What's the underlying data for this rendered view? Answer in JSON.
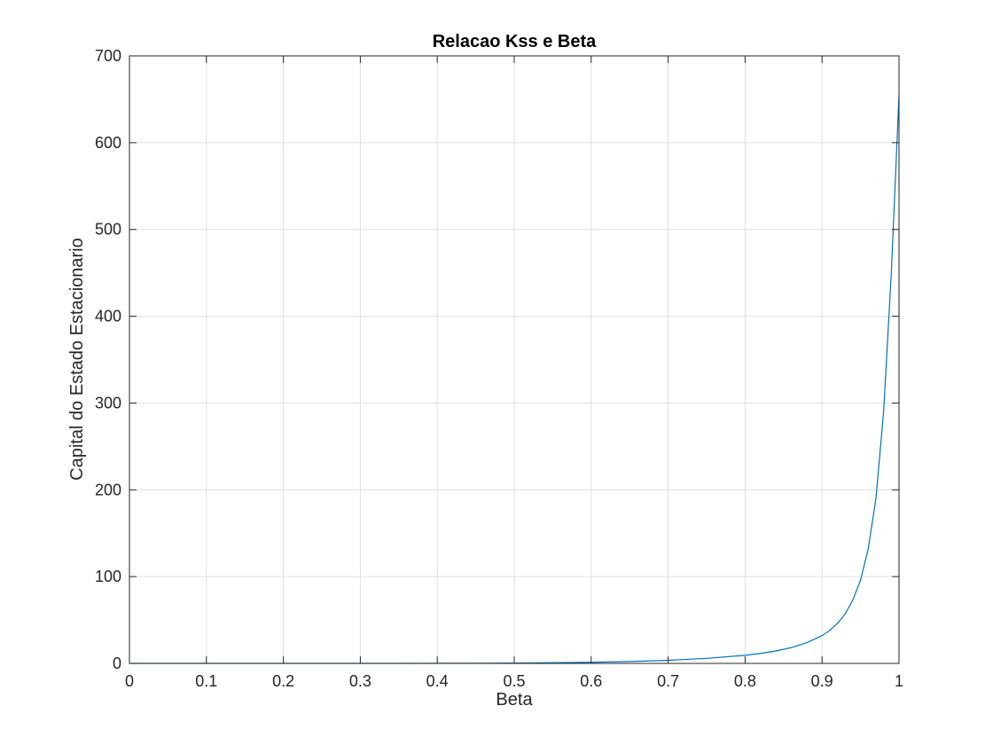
{
  "chart_data": {
    "type": "line",
    "title": "Relacao Kss e Beta",
    "xlabel": "Beta",
    "ylabel": "Capital do Estado Estacionario",
    "xlim": [
      0,
      1
    ],
    "ylim": [
      0,
      700
    ],
    "grid": true,
    "x_ticks": [
      0,
      0.1,
      0.2,
      0.3,
      0.4,
      0.5,
      0.6,
      0.7,
      0.8,
      0.9,
      1
    ],
    "x_tick_labels": [
      "0",
      "0.1",
      "0.2",
      "0.3",
      "0.4",
      "0.5",
      "0.6",
      "0.7",
      "0.8",
      "0.9",
      "1"
    ],
    "y_ticks": [
      0,
      100,
      200,
      300,
      400,
      500,
      600,
      700
    ],
    "y_tick_labels": [
      "0",
      "100",
      "200",
      "300",
      "400",
      "500",
      "600",
      "700"
    ],
    "colors": {
      "line": "#0072bd",
      "grid": "#dfdfdf",
      "axis": "#262626"
    },
    "series": [
      {
        "x": [
          0,
          0.05,
          0.1,
          0.15,
          0.2,
          0.25,
          0.3,
          0.35,
          0.4,
          0.45,
          0.5,
          0.55,
          0.6,
          0.65,
          0.7,
          0.75,
          0.8,
          0.82,
          0.84,
          0.86,
          0.88,
          0.9,
          0.91,
          0.92,
          0.93,
          0.94,
          0.95,
          0.96,
          0.97,
          0.98,
          0.99,
          1.0
        ],
        "y": [
          0,
          0,
          0,
          0,
          0,
          0,
          0,
          0,
          0.1,
          0.2,
          0.4,
          0.8,
          1.3,
          2.2,
          3.6,
          5.8,
          9.3,
          11.5,
          14.3,
          18.2,
          23.8,
          32,
          38,
          46,
          57,
          73,
          96,
          132,
          190,
          290,
          450,
          655
        ]
      }
    ]
  }
}
